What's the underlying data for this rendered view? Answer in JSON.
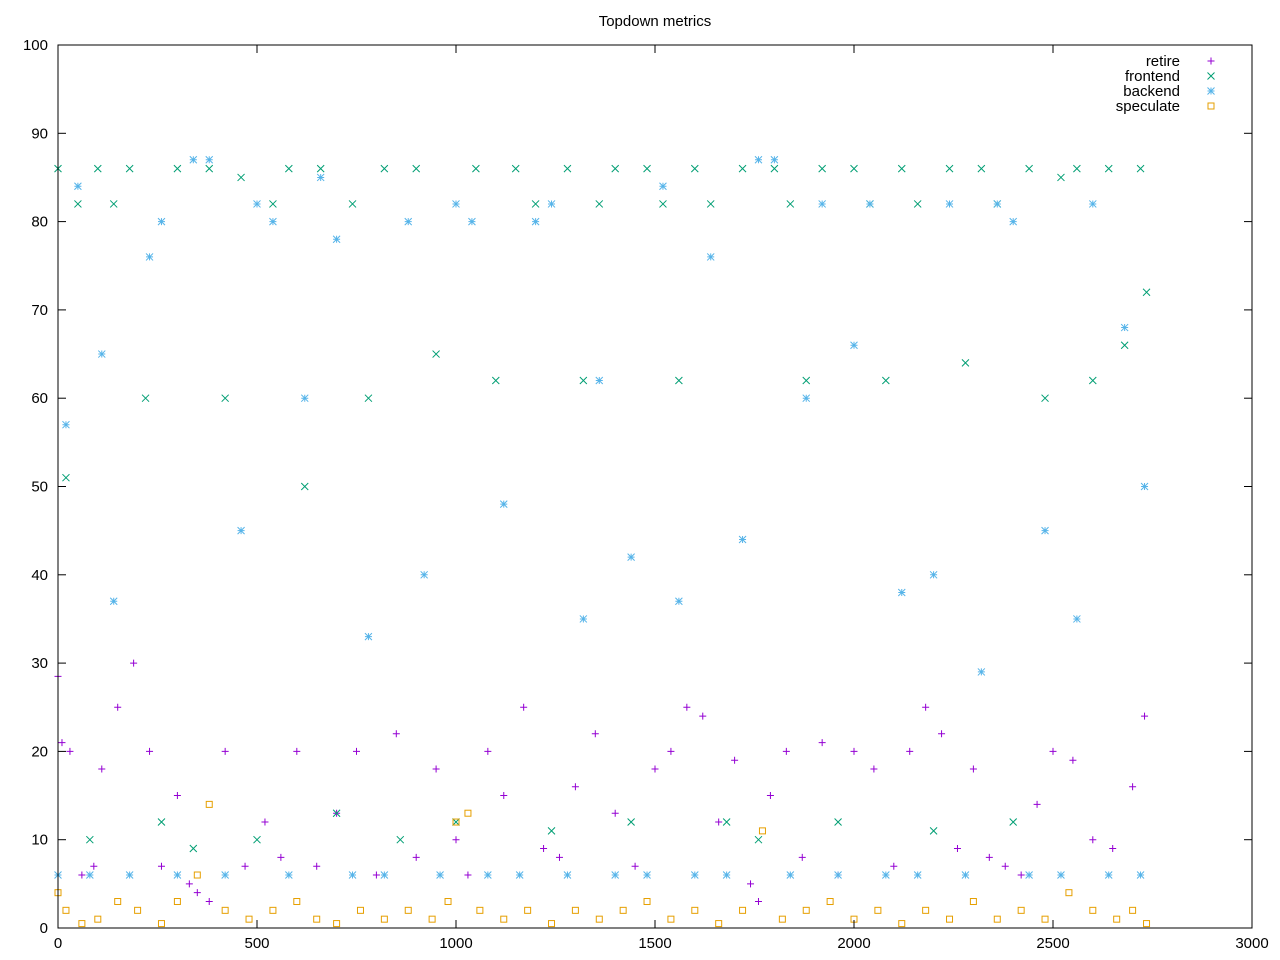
{
  "chart_data": {
    "type": "scatter",
    "title": "Topdown metrics",
    "xlabel": "",
    "ylabel": "",
    "xlim": [
      0,
      3000
    ],
    "ylim": [
      0,
      100
    ],
    "x_ticks": [
      0,
      500,
      1000,
      1500,
      2000,
      2500,
      3000
    ],
    "y_ticks": [
      0,
      10,
      20,
      30,
      40,
      50,
      60,
      70,
      80,
      90,
      100
    ],
    "grid": false,
    "legend_position": "top-right",
    "x_range_of_samples": [
      0,
      2740
    ],
    "series": [
      {
        "name": "retire",
        "marker": "plus",
        "color": "#9400d3",
        "points": [
          [
            0,
            28.5
          ],
          [
            10,
            21
          ],
          [
            30,
            20
          ],
          [
            60,
            6
          ],
          [
            90,
            7
          ],
          [
            110,
            18
          ],
          [
            150,
            25
          ],
          [
            190,
            30
          ],
          [
            230,
            20
          ],
          [
            260,
            7
          ],
          [
            300,
            15
          ],
          [
            330,
            5
          ],
          [
            350,
            4
          ],
          [
            380,
            3
          ],
          [
            420,
            20
          ],
          [
            470,
            7
          ],
          [
            520,
            12
          ],
          [
            560,
            8
          ],
          [
            600,
            20
          ],
          [
            650,
            7
          ],
          [
            700,
            13
          ],
          [
            750,
            20
          ],
          [
            800,
            6
          ],
          [
            850,
            22
          ],
          [
            900,
            8
          ],
          [
            950,
            18
          ],
          [
            1000,
            10
          ],
          [
            1030,
            6
          ],
          [
            1080,
            20
          ],
          [
            1120,
            15
          ],
          [
            1170,
            25
          ],
          [
            1220,
            9
          ],
          [
            1260,
            8
          ],
          [
            1300,
            16
          ],
          [
            1350,
            22
          ],
          [
            1400,
            13
          ],
          [
            1450,
            7
          ],
          [
            1500,
            18
          ],
          [
            1540,
            20
          ],
          [
            1580,
            25
          ],
          [
            1620,
            24
          ],
          [
            1660,
            12
          ],
          [
            1700,
            19
          ],
          [
            1740,
            5
          ],
          [
            1760,
            3
          ],
          [
            1790,
            15
          ],
          [
            1830,
            20
          ],
          [
            1870,
            8
          ],
          [
            1920,
            21
          ],
          [
            1960,
            6
          ],
          [
            2000,
            20
          ],
          [
            2050,
            18
          ],
          [
            2100,
            7
          ],
          [
            2140,
            20
          ],
          [
            2180,
            25
          ],
          [
            2220,
            22
          ],
          [
            2260,
            9
          ],
          [
            2300,
            18
          ],
          [
            2340,
            8
          ],
          [
            2380,
            7
          ],
          [
            2420,
            6
          ],
          [
            2460,
            14
          ],
          [
            2500,
            20
          ],
          [
            2550,
            19
          ],
          [
            2600,
            10
          ],
          [
            2650,
            9
          ],
          [
            2700,
            16
          ],
          [
            2730,
            24
          ]
        ]
      },
      {
        "name": "frontend",
        "marker": "x",
        "color": "#009e73",
        "points": [
          [
            0,
            86
          ],
          [
            20,
            51
          ],
          [
            50,
            82
          ],
          [
            80,
            10
          ],
          [
            100,
            86
          ],
          [
            140,
            82
          ],
          [
            180,
            86
          ],
          [
            220,
            60
          ],
          [
            260,
            12
          ],
          [
            300,
            86
          ],
          [
            340,
            9
          ],
          [
            380,
            86
          ],
          [
            420,
            60
          ],
          [
            460,
            85
          ],
          [
            500,
            10
          ],
          [
            540,
            82
          ],
          [
            580,
            86
          ],
          [
            620,
            50
          ],
          [
            660,
            86
          ],
          [
            700,
            13
          ],
          [
            740,
            82
          ],
          [
            780,
            60
          ],
          [
            820,
            86
          ],
          [
            860,
            10
          ],
          [
            900,
            86
          ],
          [
            950,
            65
          ],
          [
            1000,
            12
          ],
          [
            1050,
            86
          ],
          [
            1100,
            62
          ],
          [
            1150,
            86
          ],
          [
            1200,
            82
          ],
          [
            1240,
            11
          ],
          [
            1280,
            86
          ],
          [
            1320,
            62
          ],
          [
            1360,
            82
          ],
          [
            1400,
            86
          ],
          [
            1440,
            12
          ],
          [
            1480,
            86
          ],
          [
            1520,
            82
          ],
          [
            1560,
            62
          ],
          [
            1600,
            86
          ],
          [
            1640,
            82
          ],
          [
            1680,
            12
          ],
          [
            1720,
            86
          ],
          [
            1760,
            10
          ],
          [
            1800,
            86
          ],
          [
            1840,
            82
          ],
          [
            1880,
            62
          ],
          [
            1920,
            86
          ],
          [
            1960,
            12
          ],
          [
            2000,
            86
          ],
          [
            2040,
            82
          ],
          [
            2080,
            62
          ],
          [
            2120,
            86
          ],
          [
            2160,
            82
          ],
          [
            2200,
            11
          ],
          [
            2240,
            86
          ],
          [
            2280,
            64
          ],
          [
            2320,
            86
          ],
          [
            2360,
            82
          ],
          [
            2400,
            12
          ],
          [
            2440,
            86
          ],
          [
            2480,
            60
          ],
          [
            2520,
            85
          ],
          [
            2560,
            86
          ],
          [
            2600,
            62
          ],
          [
            2640,
            86
          ],
          [
            2680,
            66
          ],
          [
            2720,
            86
          ],
          [
            2735,
            72
          ]
        ]
      },
      {
        "name": "backend",
        "marker": "asterisk",
        "color": "#56b4e9",
        "points": [
          [
            0,
            6
          ],
          [
            20,
            57
          ],
          [
            50,
            84
          ],
          [
            80,
            6
          ],
          [
            110,
            65
          ],
          [
            140,
            37
          ],
          [
            180,
            6
          ],
          [
            230,
            76
          ],
          [
            260,
            80
          ],
          [
            300,
            6
          ],
          [
            340,
            87
          ],
          [
            380,
            87
          ],
          [
            420,
            6
          ],
          [
            460,
            45
          ],
          [
            500,
            82
          ],
          [
            540,
            80
          ],
          [
            580,
            6
          ],
          [
            620,
            60
          ],
          [
            660,
            85
          ],
          [
            700,
            78
          ],
          [
            740,
            6
          ],
          [
            780,
            33
          ],
          [
            820,
            6
          ],
          [
            880,
            80
          ],
          [
            920,
            40
          ],
          [
            960,
            6
          ],
          [
            1000,
            82
          ],
          [
            1040,
            80
          ],
          [
            1080,
            6
          ],
          [
            1120,
            48
          ],
          [
            1160,
            6
          ],
          [
            1200,
            80
          ],
          [
            1240,
            82
          ],
          [
            1280,
            6
          ],
          [
            1320,
            35
          ],
          [
            1360,
            62
          ],
          [
            1400,
            6
          ],
          [
            1440,
            42
          ],
          [
            1480,
            6
          ],
          [
            1520,
            84
          ],
          [
            1560,
            37
          ],
          [
            1600,
            6
          ],
          [
            1640,
            76
          ],
          [
            1680,
            6
          ],
          [
            1720,
            44
          ],
          [
            1760,
            87
          ],
          [
            1800,
            87
          ],
          [
            1840,
            6
          ],
          [
            1880,
            60
          ],
          [
            1920,
            82
          ],
          [
            1960,
            6
          ],
          [
            2000,
            66
          ],
          [
            2040,
            82
          ],
          [
            2080,
            6
          ],
          [
            2120,
            38
          ],
          [
            2160,
            6
          ],
          [
            2200,
            40
          ],
          [
            2240,
            82
          ],
          [
            2280,
            6
          ],
          [
            2320,
            29
          ],
          [
            2360,
            82
          ],
          [
            2400,
            80
          ],
          [
            2440,
            6
          ],
          [
            2480,
            45
          ],
          [
            2520,
            6
          ],
          [
            2560,
            35
          ],
          [
            2600,
            82
          ],
          [
            2640,
            6
          ],
          [
            2680,
            68
          ],
          [
            2720,
            6
          ],
          [
            2730,
            50
          ]
        ]
      },
      {
        "name": "speculate",
        "marker": "square",
        "color": "#e69f00",
        "points": [
          [
            0,
            4
          ],
          [
            20,
            2
          ],
          [
            60,
            0.5
          ],
          [
            100,
            1
          ],
          [
            150,
            3
          ],
          [
            200,
            2
          ],
          [
            260,
            0.5
          ],
          [
            300,
            3
          ],
          [
            350,
            6
          ],
          [
            380,
            14
          ],
          [
            420,
            2
          ],
          [
            480,
            1
          ],
          [
            540,
            2
          ],
          [
            600,
            3
          ],
          [
            650,
            1
          ],
          [
            700,
            0.5
          ],
          [
            760,
            2
          ],
          [
            820,
            1
          ],
          [
            880,
            2
          ],
          [
            940,
            1
          ],
          [
            980,
            3
          ],
          [
            1000,
            12
          ],
          [
            1030,
            13
          ],
          [
            1060,
            2
          ],
          [
            1120,
            1
          ],
          [
            1180,
            2
          ],
          [
            1240,
            0.5
          ],
          [
            1300,
            2
          ],
          [
            1360,
            1
          ],
          [
            1420,
            2
          ],
          [
            1480,
            3
          ],
          [
            1540,
            1
          ],
          [
            1600,
            2
          ],
          [
            1660,
            0.5
          ],
          [
            1720,
            2
          ],
          [
            1770,
            11
          ],
          [
            1820,
            1
          ],
          [
            1880,
            2
          ],
          [
            1940,
            3
          ],
          [
            2000,
            1
          ],
          [
            2060,
            2
          ],
          [
            2120,
            0.5
          ],
          [
            2180,
            2
          ],
          [
            2240,
            1
          ],
          [
            2300,
            3
          ],
          [
            2360,
            1
          ],
          [
            2420,
            2
          ],
          [
            2480,
            1
          ],
          [
            2540,
            4
          ],
          [
            2600,
            2
          ],
          [
            2660,
            1
          ],
          [
            2700,
            2
          ],
          [
            2735,
            0.5
          ]
        ]
      }
    ]
  }
}
